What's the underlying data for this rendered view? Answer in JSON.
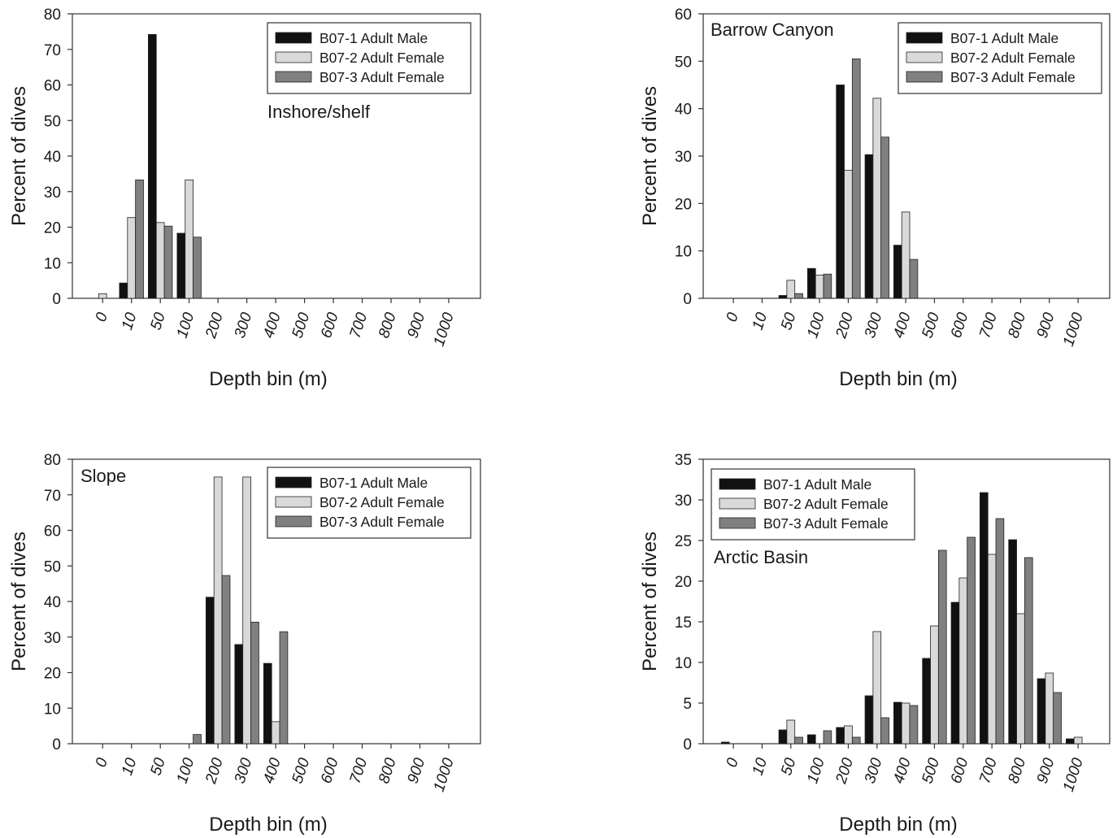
{
  "chart_data": [
    {
      "type": "bar",
      "title": "Inshore/shelf",
      "xlabel": "Depth bin (m)",
      "ylabel": "Percent of dives",
      "categories": [
        "0",
        "10",
        "50",
        "100",
        "200",
        "300",
        "400",
        "500",
        "600",
        "700",
        "800",
        "900",
        "1000"
      ],
      "ylim": [
        0,
        80
      ],
      "yticks": [
        0,
        10,
        20,
        30,
        40,
        50,
        60,
        70,
        80
      ],
      "legend": "top-right",
      "label_position": "middle-right",
      "series": [
        {
          "name": "B07-1 Adult Male",
          "color": "#111111",
          "values": [
            0,
            4.3,
            74.2,
            18.3,
            0,
            0,
            0,
            0,
            0,
            0,
            0,
            0,
            0
          ]
        },
        {
          "name": "B07-2 Adult Female",
          "color": "#d9d9d9",
          "values": [
            1.3,
            22.7,
            21.3,
            33.3,
            0,
            0,
            0,
            0,
            0,
            0,
            0,
            0,
            0
          ]
        },
        {
          "name": "B07-3 Adult Female",
          "color": "#808080",
          "values": [
            0,
            33.3,
            20.3,
            17.2,
            0,
            0,
            0,
            0,
            0,
            0,
            0,
            0,
            0
          ]
        }
      ]
    },
    {
      "type": "bar",
      "title": "Barrow Canyon",
      "xlabel": "Depth bin (m)",
      "ylabel": "Percent of dives",
      "categories": [
        "0",
        "10",
        "50",
        "100",
        "200",
        "300",
        "400",
        "500",
        "600",
        "700",
        "800",
        "900",
        "1000"
      ],
      "ylim": [
        0,
        60
      ],
      "yticks": [
        0,
        10,
        20,
        30,
        40,
        50,
        60
      ],
      "legend": "top-right",
      "label_position": "top-left",
      "series": [
        {
          "name": "B07-1 Adult Male",
          "color": "#111111",
          "values": [
            0,
            0,
            0.6,
            6.3,
            45.0,
            30.3,
            11.2,
            0,
            0,
            0,
            0,
            0,
            0
          ]
        },
        {
          "name": "B07-2 Adult Female",
          "color": "#d9d9d9",
          "values": [
            0,
            0,
            3.8,
            4.9,
            27.0,
            42.2,
            18.2,
            0,
            0,
            0,
            0,
            0,
            0
          ]
        },
        {
          "name": "B07-3 Adult Female",
          "color": "#808080",
          "values": [
            0,
            0,
            1.0,
            5.1,
            50.5,
            34.0,
            8.2,
            0,
            0,
            0,
            0,
            0,
            0
          ]
        }
      ]
    },
    {
      "type": "bar",
      "title": "Slope",
      "xlabel": "Depth bin (m)",
      "ylabel": "Percent of dives",
      "categories": [
        "0",
        "10",
        "50",
        "100",
        "200",
        "300",
        "400",
        "500",
        "600",
        "700",
        "800",
        "900",
        "1000"
      ],
      "ylim": [
        0,
        80
      ],
      "yticks": [
        0,
        10,
        20,
        30,
        40,
        50,
        60,
        70,
        80
      ],
      "legend": "top-right",
      "label_position": "top-left",
      "series": [
        {
          "name": "B07-1 Adult Male",
          "color": "#111111",
          "values": [
            0,
            0,
            0,
            0,
            41.2,
            27.9,
            22.6,
            0,
            0,
            0,
            0,
            0,
            0
          ]
        },
        {
          "name": "B07-2 Adult Female",
          "color": "#d9d9d9",
          "values": [
            0,
            0,
            0,
            0,
            75.0,
            75.0,
            6.2,
            0,
            0,
            0,
            0,
            0,
            0
          ]
        },
        {
          "name": "B07-3 Adult Female",
          "color": "#808080",
          "values": [
            0,
            0,
            0,
            2.6,
            47.3,
            34.2,
            31.5,
            0,
            0,
            0,
            0,
            0,
            0
          ]
        }
      ]
    },
    {
      "type": "bar",
      "title": "Arctic Basin",
      "xlabel": "Depth bin (m)",
      "ylabel": "Percent of dives",
      "categories": [
        "0",
        "10",
        "50",
        "100",
        "200",
        "300",
        "400",
        "500",
        "600",
        "700",
        "800",
        "900",
        "1000"
      ],
      "ylim": [
        0,
        35
      ],
      "yticks": [
        0,
        5,
        10,
        15,
        20,
        25,
        30,
        35
      ],
      "legend": "top-left",
      "label_position": "upper-left",
      "series": [
        {
          "name": "B07-1 Adult Male",
          "color": "#111111",
          "values": [
            0.2,
            0,
            1.7,
            1.1,
            2.0,
            5.9,
            5.1,
            10.5,
            17.4,
            30.9,
            25.1,
            8.0,
            0.6
          ]
        },
        {
          "name": "B07-2 Adult Female",
          "color": "#d9d9d9",
          "values": [
            0,
            0,
            2.9,
            0,
            2.2,
            13.8,
            5.0,
            14.5,
            20.4,
            23.3,
            16.0,
            8.7,
            0.8
          ]
        },
        {
          "name": "B07-3 Adult Female",
          "color": "#808080",
          "values": [
            0,
            0,
            0.8,
            1.6,
            0.8,
            3.2,
            4.7,
            23.8,
            25.4,
            27.7,
            22.9,
            6.3,
            0
          ]
        }
      ]
    }
  ]
}
